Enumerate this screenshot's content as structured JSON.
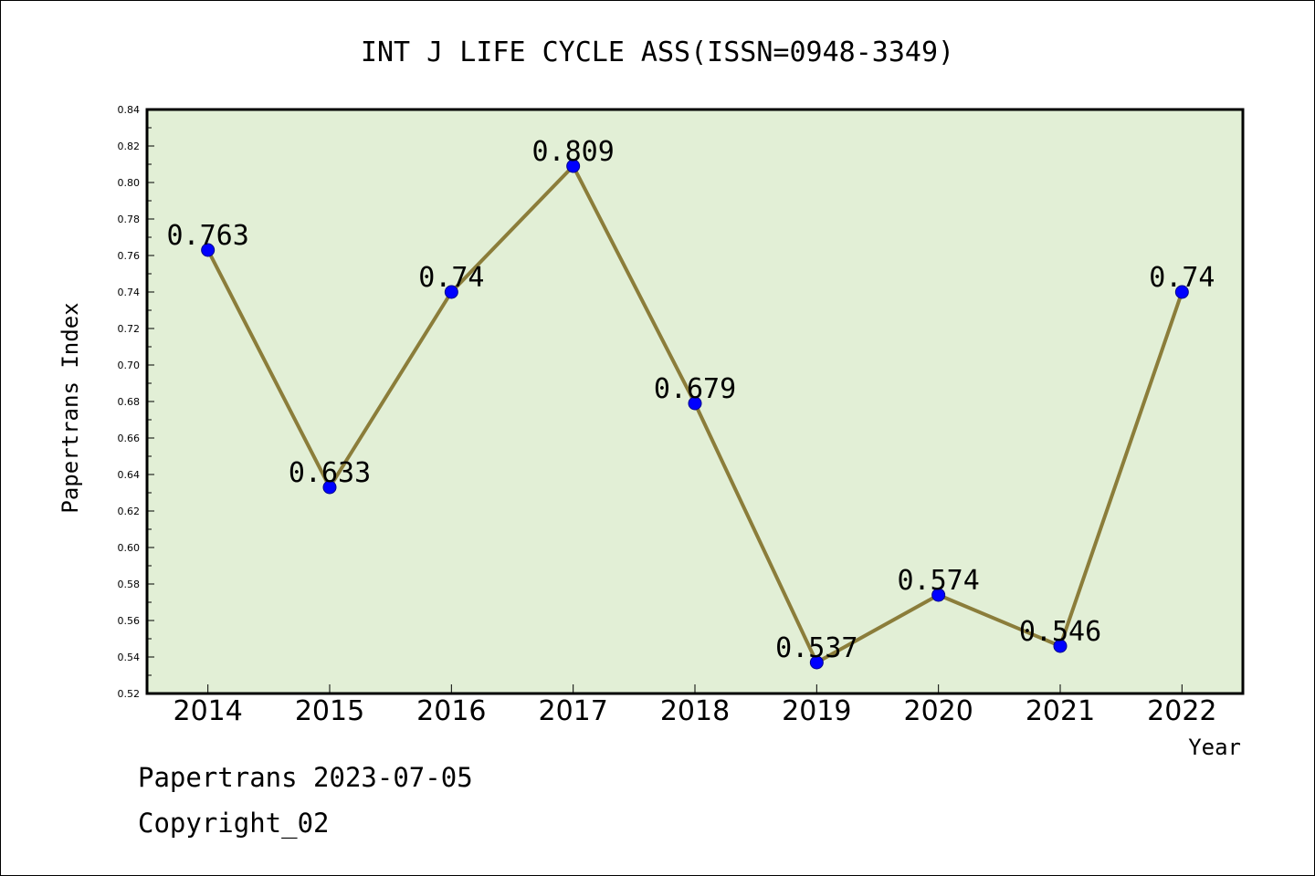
{
  "chart_data": {
    "type": "line",
    "title": "INT J LIFE CYCLE ASS(ISSN=0948-3349)",
    "xlabel": "Year",
    "ylabel": "Papertrans Index",
    "categories": [
      "2014",
      "2015",
      "2016",
      "2017",
      "2018",
      "2019",
      "2020",
      "2021",
      "2022"
    ],
    "series": [
      {
        "values": [
          0.763,
          0.633,
          0.74,
          0.809,
          0.679,
          0.537,
          0.574,
          0.546,
          0.74
        ],
        "labels": [
          "0.763",
          "0.633",
          "0.74",
          "0.809",
          "0.679",
          "0.537",
          "0.574",
          "0.546",
          "0.74"
        ]
      }
    ],
    "ylim": [
      0.52,
      0.84
    ],
    "yticks": [
      "0.52",
      "0.54",
      "0.56",
      "0.58",
      "0.60",
      "0.62",
      "0.64",
      "0.66",
      "0.68",
      "0.70",
      "0.72",
      "0.74",
      "0.76",
      "0.78",
      "0.80",
      "0.82",
      "0.84"
    ],
    "grid": false,
    "colors": {
      "plot_background": "#e2efd6",
      "line": "#8b7d3a",
      "marker": "#0000ff"
    }
  },
  "footer": {
    "date_line": "Papertrans 2023-07-05",
    "copyright": "Copyright_02"
  }
}
